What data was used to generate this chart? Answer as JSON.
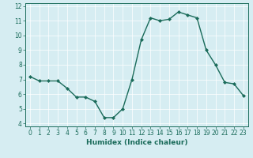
{
  "x": [
    0,
    1,
    2,
    3,
    4,
    5,
    6,
    7,
    8,
    9,
    10,
    11,
    12,
    13,
    14,
    15,
    16,
    17,
    18,
    19,
    20,
    21,
    22,
    23
  ],
  "y": [
    7.2,
    6.9,
    6.9,
    6.9,
    6.4,
    5.8,
    5.8,
    5.5,
    4.4,
    4.4,
    5.0,
    7.0,
    9.7,
    11.2,
    11.0,
    11.1,
    11.6,
    11.4,
    11.2,
    9.0,
    8.0,
    6.8,
    6.7,
    5.9
  ],
  "line_color": "#1a6b5a",
  "marker": "D",
  "marker_size": 2,
  "linewidth": 1.0,
  "xlabel": "Humidex (Indice chaleur)",
  "xlim": [
    -0.5,
    23.5
  ],
  "ylim": [
    3.8,
    12.2
  ],
  "yticks": [
    4,
    5,
    6,
    7,
    8,
    9,
    10,
    11,
    12
  ],
  "xticks": [
    0,
    1,
    2,
    3,
    4,
    5,
    6,
    7,
    8,
    9,
    10,
    11,
    12,
    13,
    14,
    15,
    16,
    17,
    18,
    19,
    20,
    21,
    22,
    23
  ],
  "bg_color": "#d6edf2",
  "grid_color": "#ffffff",
  "tick_color": "#1a6b5a",
  "label_color": "#1a6b5a",
  "xlabel_fontsize": 6.5,
  "tick_fontsize": 5.5
}
